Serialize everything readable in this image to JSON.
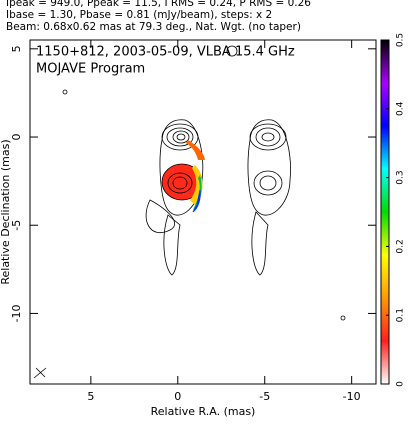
{
  "chart_data": {
    "type": "contour",
    "header": [
      "Ipeak = 949.0, Ppeak = 11.5, I RMS = 0.24, P RMS = 0.26",
      "Ibase = 1.30, Pbase = 0.81 (mJy/beam), steps: x 2",
      "Beam: 0.68x0.62 mas at 79.3 deg., Nat. Wgt. (no taper)"
    ],
    "title": "1150+812, 2003-05-09, VLBA 15.4 GHz",
    "subtitle": "MOJAVE Program",
    "xlabel": "Relative R.A. (mas)",
    "ylabel": "Relative Declination (mas)",
    "xlim": [
      8.5,
      -11.4
    ],
    "xticks": [
      5,
      0,
      -5,
      -10
    ],
    "ylim": [
      -14,
      5.5
    ],
    "yticks": [
      5,
      0,
      -5,
      -10
    ],
    "colorbar": {
      "lim": [
        0,
        0.5
      ],
      "ticks": [
        0,
        0.1,
        0.2,
        0.3,
        0.4,
        0.5
      ],
      "colors": [
        "#ffffff",
        "#ff2020",
        "#ff9900",
        "#ffff00",
        "#00dd00",
        "#00ffff",
        "#0000ff",
        "#aa00ff",
        "#000000"
      ]
    }
  }
}
